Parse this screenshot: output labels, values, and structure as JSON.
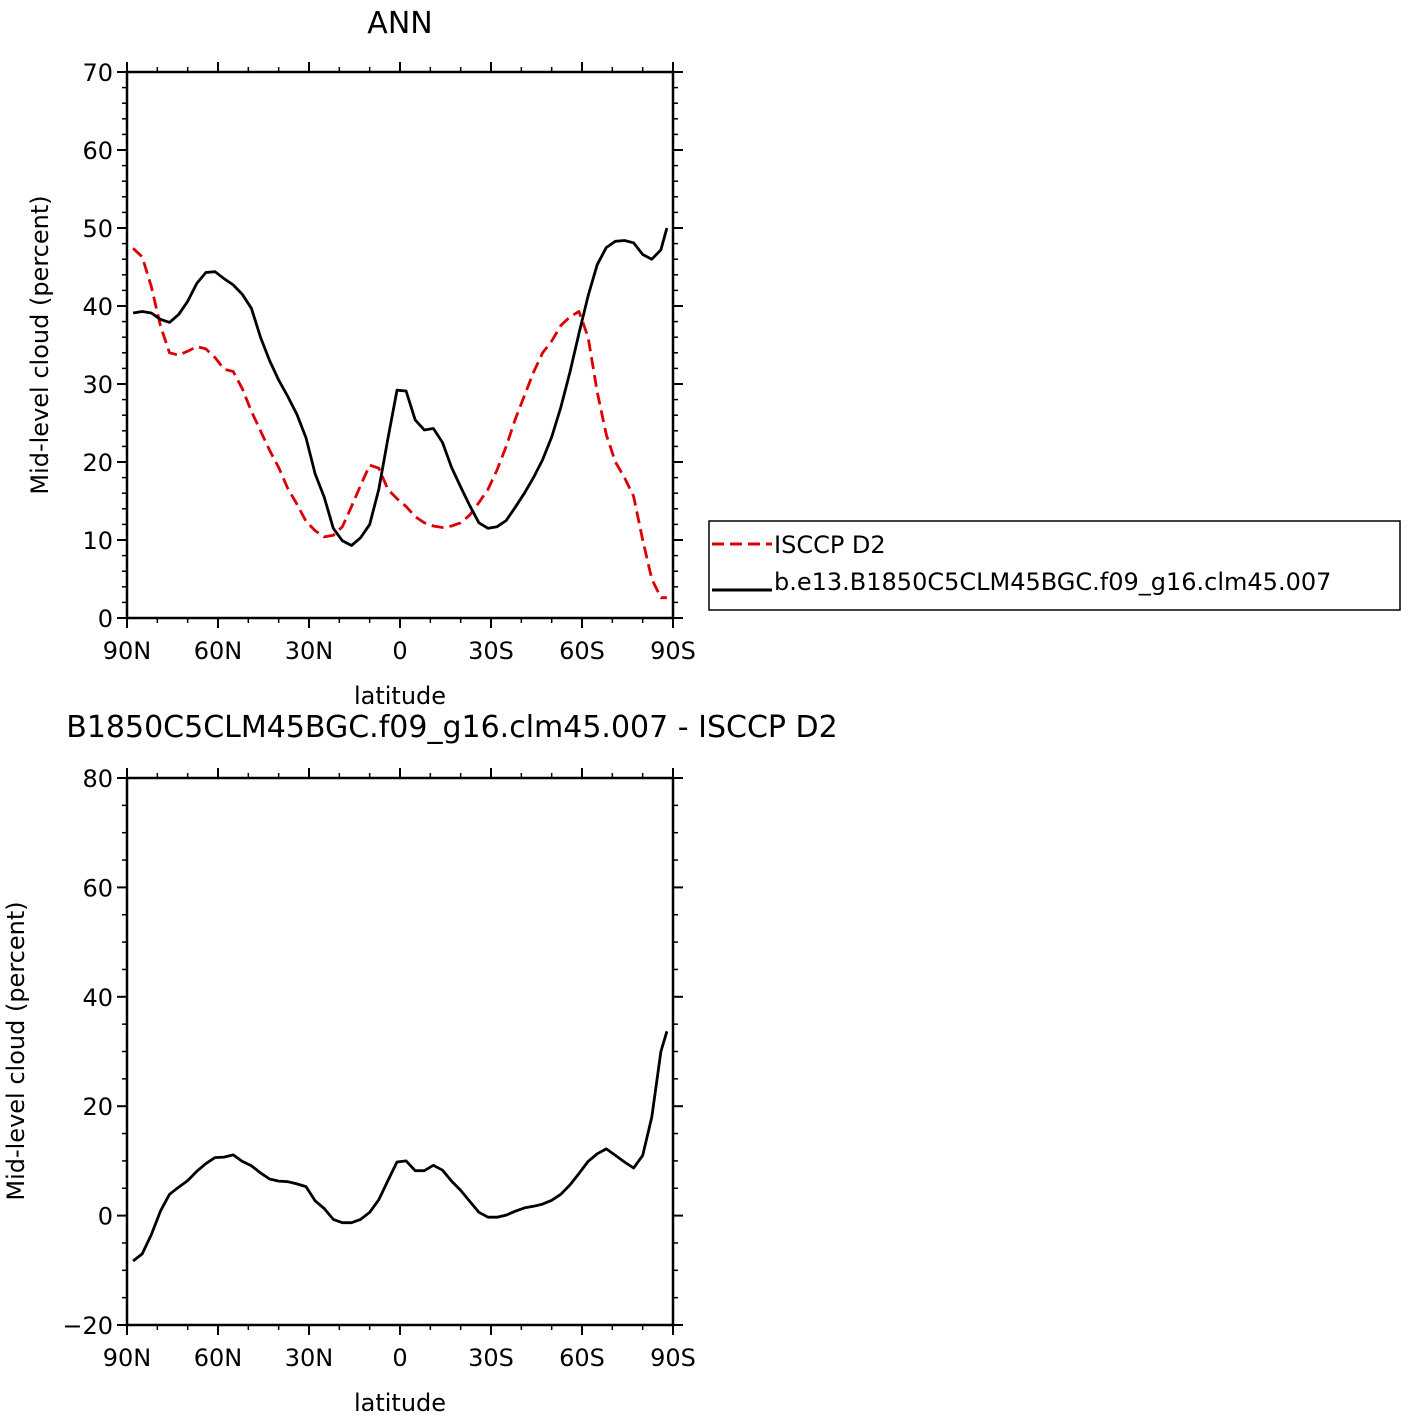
{
  "chart_data": [
    {
      "type": "line",
      "title": "ANN",
      "xlabel": "latitude",
      "ylabel": "Mid-level cloud (percent)",
      "xlim": [
        90,
        -90
      ],
      "ylim": [
        0,
        70
      ],
      "yticks": [
        0,
        10,
        20,
        30,
        40,
        50,
        60,
        70
      ],
      "xticks": [
        {
          "value": 90,
          "label": "90N"
        },
        {
          "value": 60,
          "label": "60N"
        },
        {
          "value": 30,
          "label": "30N"
        },
        {
          "value": 0,
          "label": "0"
        },
        {
          "value": -30,
          "label": "30S"
        },
        {
          "value": -60,
          "label": "60S"
        },
        {
          "value": -90,
          "label": "90S"
        }
      ],
      "grid": false,
      "legend_position": "right",
      "series": [
        {
          "name": "ISCCP D2",
          "color": "#dd0000",
          "dash": "dashed",
          "x": [
            88,
            85,
            82,
            79,
            76,
            73,
            70,
            67,
            64,
            61,
            58,
            55,
            52,
            49,
            46,
            43,
            40,
            37,
            34,
            31,
            28,
            25,
            22,
            19,
            16,
            13,
            10,
            7,
            4,
            1,
            -2,
            -5,
            -8,
            -11,
            -14,
            -17,
            -20,
            -23,
            -26,
            -29,
            -32,
            -35,
            -38,
            -41,
            -44,
            -47,
            -50,
            -53,
            -56,
            -59,
            -62,
            -65,
            -68,
            -71,
            -74,
            -77,
            -80,
            -83,
            -86,
            -88
          ],
          "y": [
            47.4,
            46.3,
            42.5,
            37.5,
            34.0,
            33.7,
            34.2,
            34.8,
            34.5,
            33.4,
            31.9,
            31.6,
            29.4,
            26.5,
            24.0,
            21.5,
            19.3,
            16.6,
            14.6,
            12.4,
            11.2,
            10.4,
            10.6,
            11.7,
            14.3,
            17.0,
            19.6,
            19.2,
            16.5,
            15.3,
            14.3,
            13.0,
            12.2,
            11.8,
            11.6,
            11.8,
            12.2,
            13.2,
            14.8,
            16.5,
            19.0,
            22.0,
            25.5,
            28.5,
            31.5,
            34.0,
            35.5,
            37.5,
            38.6,
            39.3,
            36.0,
            29.0,
            23.5,
            20.0,
            18.0,
            15.6,
            10.0,
            5.0,
            2.6,
            2.6
          ]
        },
        {
          "name": "b.e13.B1850C5CLM45BGC.f09_g16.clm45.007",
          "color": "#000000",
          "dash": "solid",
          "x": [
            88,
            85,
            82,
            79,
            76,
            73,
            70,
            67,
            64,
            61,
            58,
            55,
            52,
            49,
            46,
            43,
            40,
            37,
            34,
            31,
            28,
            25,
            22,
            19,
            16,
            13,
            10,
            7,
            4,
            1,
            -2,
            -5,
            -8,
            -11,
            -14,
            -17,
            -20,
            -23,
            -26,
            -29,
            -32,
            -35,
            -38,
            -41,
            -44,
            -47,
            -50,
            -53,
            -56,
            -59,
            -62,
            -65,
            -68,
            -71,
            -74,
            -77,
            -80,
            -83,
            -86,
            -88
          ],
          "y": [
            39.1,
            39.3,
            39.1,
            38.3,
            37.9,
            38.9,
            40.6,
            42.9,
            44.3,
            44.4,
            43.5,
            42.7,
            41.5,
            39.7,
            36.0,
            33.0,
            30.5,
            28.4,
            26.1,
            23.1,
            18.5,
            15.5,
            11.5,
            9.9,
            9.3,
            10.3,
            12.0,
            16.5,
            23.0,
            29.2,
            29.1,
            25.4,
            24.1,
            24.3,
            22.5,
            19.3,
            16.8,
            14.4,
            12.2,
            11.5,
            11.7,
            12.5,
            14.2,
            16.0,
            18.0,
            20.3,
            23.2,
            27.0,
            31.5,
            36.5,
            41.3,
            45.3,
            47.5,
            48.3,
            48.4,
            48.1,
            46.6,
            46.0,
            47.2,
            50.0
          ]
        }
      ]
    },
    {
      "type": "line",
      "title": "B1850C5CLM45BGC.f09_g16.clm45.007 - ISCCP D2",
      "xlabel": "latitude",
      "ylabel": "Mid-level cloud (percent)",
      "xlim": [
        90,
        -90
      ],
      "ylim": [
        -20,
        80
      ],
      "yticks": [
        -20,
        0,
        20,
        40,
        60,
        80
      ],
      "xticks": [
        {
          "value": 90,
          "label": "90N"
        },
        {
          "value": 60,
          "label": "60N"
        },
        {
          "value": 30,
          "label": "30N"
        },
        {
          "value": 0,
          "label": "0"
        },
        {
          "value": -30,
          "label": "30S"
        },
        {
          "value": -60,
          "label": "60S"
        },
        {
          "value": -90,
          "label": "90S"
        }
      ],
      "grid": false,
      "series": [
        {
          "color": "#000000",
          "dash": "solid",
          "x": [
            88,
            85,
            82,
            79,
            76,
            73,
            70,
            67,
            64,
            61,
            58,
            55,
            52,
            49,
            46,
            43,
            40,
            37,
            34,
            31,
            28,
            25,
            22,
            19,
            16,
            13,
            10,
            7,
            4,
            1,
            -2,
            -5,
            -8,
            -11,
            -14,
            -17,
            -20,
            -23,
            -26,
            -29,
            -32,
            -35,
            -38,
            -41,
            -44,
            -47,
            -50,
            -53,
            -56,
            -59,
            -62,
            -65,
            -68,
            -71,
            -74,
            -77,
            -80,
            -83,
            -86,
            -88
          ],
          "y": [
            -8.3,
            -7.0,
            -3.5,
            0.8,
            3.9,
            5.2,
            6.4,
            8.1,
            9.5,
            10.6,
            10.7,
            11.1,
            9.9,
            9.1,
            7.8,
            6.7,
            6.3,
            6.2,
            5.8,
            5.3,
            2.7,
            1.3,
            -0.7,
            -1.3,
            -1.3,
            -0.7,
            0.6,
            2.9,
            6.4,
            9.8,
            10.0,
            8.2,
            8.2,
            9.2,
            8.3,
            6.3,
            4.6,
            2.6,
            0.6,
            -0.3,
            -0.3,
            0.1,
            0.8,
            1.4,
            1.7,
            2.1,
            2.8,
            3.9,
            5.6,
            7.7,
            9.9,
            11.3,
            12.2,
            11.0,
            9.8,
            8.7,
            11.0,
            18.0,
            30.0,
            33.7
          ]
        }
      ]
    }
  ]
}
